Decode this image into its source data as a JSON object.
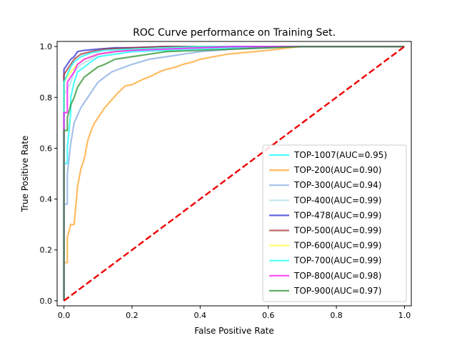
{
  "chart_data": {
    "type": "line",
    "title": "ROC Curve performance on Training Set.",
    "xlabel": "False Positive Rate",
    "ylabel": "True Positive Rate",
    "xlim": [
      -0.02,
      1.02
    ],
    "ylim": [
      -0.02,
      1.02
    ],
    "xticks": [
      "0.0",
      "0.2",
      "0.4",
      "0.6",
      "0.8",
      "1.0"
    ],
    "yticks": [
      "0.0",
      "0.2",
      "0.4",
      "0.6",
      "0.8",
      "1.0"
    ],
    "grid": false,
    "legend_position": "lower-right",
    "series": [
      {
        "name": "TOP-1007(AUC=0.95)",
        "color": "#00ffff",
        "x": [
          0,
          0,
          0.01,
          0.01,
          0.02,
          0.02,
          0.03,
          0.04,
          0.06,
          0.08,
          0.1,
          0.15,
          0.2,
          0.3,
          0.4,
          0.5,
          0.6,
          0.7,
          1.0
        ],
        "y": [
          0,
          0.54,
          0.54,
          0.6,
          0.74,
          0.8,
          0.86,
          0.9,
          0.92,
          0.94,
          0.96,
          0.97,
          0.98,
          0.985,
          0.99,
          0.995,
          1.0,
          1.0,
          1.0
        ]
      },
      {
        "name": "TOP-200(AUC=0.90)",
        "color": "#ff9f1c",
        "x": [
          0,
          0,
          0.01,
          0.01,
          0.02,
          0.03,
          0.04,
          0.05,
          0.06,
          0.07,
          0.08,
          0.09,
          0.1,
          0.12,
          0.14,
          0.16,
          0.18,
          0.2,
          0.23,
          0.25,
          0.28,
          0.3,
          0.33,
          0.35,
          0.38,
          0.4,
          0.44,
          0.48,
          0.52,
          0.56,
          0.6,
          0.63,
          0.66,
          0.7,
          1.0
        ],
        "y": [
          0,
          0.15,
          0.15,
          0.25,
          0.3,
          0.3,
          0.45,
          0.52,
          0.56,
          0.63,
          0.67,
          0.7,
          0.72,
          0.76,
          0.79,
          0.82,
          0.845,
          0.85,
          0.87,
          0.88,
          0.9,
          0.91,
          0.92,
          0.93,
          0.94,
          0.95,
          0.96,
          0.97,
          0.975,
          0.98,
          0.985,
          0.99,
          0.995,
          1.0,
          1.0
        ]
      },
      {
        "name": "TOP-300(AUC=0.94)",
        "color": "#7ea6e0",
        "x": [
          0,
          0,
          0.01,
          0.01,
          0.02,
          0.03,
          0.04,
          0.05,
          0.06,
          0.07,
          0.08,
          0.09,
          0.1,
          0.12,
          0.14,
          0.16,
          0.18,
          0.2,
          0.25,
          0.3,
          0.35,
          0.4,
          0.5,
          0.6,
          0.65,
          1.0
        ],
        "y": [
          0,
          0.38,
          0.38,
          0.5,
          0.62,
          0.7,
          0.73,
          0.76,
          0.78,
          0.8,
          0.82,
          0.84,
          0.86,
          0.88,
          0.9,
          0.91,
          0.92,
          0.93,
          0.95,
          0.96,
          0.97,
          0.98,
          0.99,
          0.995,
          1.0,
          1.0
        ]
      },
      {
        "name": "TOP-400(AUC=0.99)",
        "color": "#add8e6",
        "x": [
          0,
          0,
          0.01,
          0.02,
          0.03,
          0.05,
          0.08,
          0.1,
          0.15,
          0.2,
          0.3,
          0.4,
          0.5,
          1.0
        ],
        "y": [
          0,
          0.81,
          0.83,
          0.86,
          0.9,
          0.93,
          0.95,
          0.97,
          0.98,
          0.985,
          0.99,
          0.995,
          1.0,
          1.0
        ]
      },
      {
        "name": "TOP-478(AUC=0.99)",
        "color": "#2323d6",
        "x": [
          0,
          0,
          0.01,
          0.02,
          0.03,
          0.04,
          0.06,
          0.1,
          0.15,
          0.2,
          0.3,
          0.4,
          1.0
        ],
        "y": [
          0,
          0.91,
          0.93,
          0.95,
          0.96,
          0.98,
          0.985,
          0.99,
          0.995,
          0.995,
          1.0,
          1.0,
          1.0
        ]
      },
      {
        "name": "TOP-500(AUC=0.99)",
        "color": "#a52a2a",
        "x": [
          0,
          0,
          0.01,
          0.02,
          0.03,
          0.05,
          0.08,
          0.12,
          0.2,
          0.3,
          0.4,
          1.0
        ],
        "y": [
          0,
          0.89,
          0.91,
          0.93,
          0.95,
          0.97,
          0.98,
          0.99,
          0.995,
          1.0,
          1.0,
          1.0
        ]
      },
      {
        "name": "TOP-600(AUC=0.99)",
        "color": "#ffff33",
        "x": [
          0,
          0,
          0.01,
          0.02,
          0.04,
          0.06,
          0.1,
          0.15,
          0.2,
          0.3,
          0.4,
          1.0
        ],
        "y": [
          0,
          0.86,
          0.88,
          0.9,
          0.93,
          0.95,
          0.97,
          0.98,
          0.99,
          0.995,
          1.0,
          1.0
        ]
      },
      {
        "name": "TOP-700(AUC=0.99)",
        "color": "#00ffff",
        "x": [
          0,
          0,
          0.01,
          0.02,
          0.03,
          0.05,
          0.08,
          0.12,
          0.2,
          0.3,
          0.4,
          1.0
        ],
        "y": [
          0,
          0.86,
          0.89,
          0.92,
          0.94,
          0.96,
          0.975,
          0.985,
          0.99,
          0.995,
          1.0,
          1.0
        ]
      },
      {
        "name": "TOP-800(AUC=0.98)",
        "color": "#ff00ff",
        "x": [
          0,
          0,
          0.01,
          0.01,
          0.02,
          0.03,
          0.04,
          0.06,
          0.08,
          0.1,
          0.15,
          0.2,
          0.3,
          0.4,
          0.5,
          1.0
        ],
        "y": [
          0,
          0.74,
          0.74,
          0.86,
          0.88,
          0.9,
          0.93,
          0.95,
          0.96,
          0.97,
          0.98,
          0.985,
          0.99,
          0.995,
          1.0,
          1.0
        ]
      },
      {
        "name": "TOP-900(AUC=0.97)",
        "color": "#228b22",
        "x": [
          0,
          0,
          0.01,
          0.01,
          0.02,
          0.03,
          0.04,
          0.05,
          0.06,
          0.07,
          0.08,
          0.1,
          0.12,
          0.15,
          0.2,
          0.25,
          0.3,
          0.4,
          0.5,
          0.6,
          0.7,
          1.0
        ],
        "y": [
          0,
          0.67,
          0.67,
          0.72,
          0.77,
          0.8,
          0.84,
          0.86,
          0.88,
          0.89,
          0.9,
          0.92,
          0.93,
          0.95,
          0.96,
          0.97,
          0.98,
          0.985,
          0.99,
          0.995,
          1.0,
          1.0
        ]
      }
    ],
    "reference_line": {
      "color": "#ee0000",
      "style": "dashed",
      "x": [
        0,
        1
      ],
      "y": [
        0,
        1
      ]
    }
  }
}
